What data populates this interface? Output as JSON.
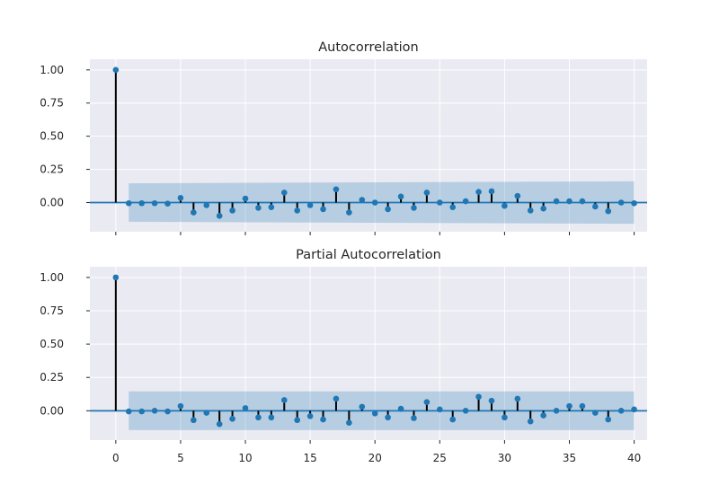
{
  "chart_data": [
    {
      "type": "stem",
      "title": "Autocorrelation",
      "xlim": [
        -2,
        41
      ],
      "ylim": [
        -0.22,
        1.08
      ],
      "yticks": [
        "1.00",
        "0.75",
        "0.50",
        "0.25",
        "0.00"
      ],
      "yticks_values": [
        1.0,
        0.75,
        0.5,
        0.25,
        0.0
      ],
      "xticks_values": [
        0,
        5,
        10,
        15,
        20,
        25,
        30,
        35,
        40
      ],
      "xticks_labels_shown": false,
      "confidence_band": {
        "x_start": 1,
        "x_end": 40,
        "lower_start": -0.145,
        "upper_start": 0.145,
        "lower_end": -0.16,
        "upper_end": 0.16
      },
      "lags": [
        0,
        1,
        2,
        3,
        4,
        5,
        6,
        7,
        8,
        9,
        10,
        11,
        12,
        13,
        14,
        15,
        16,
        17,
        18,
        19,
        20,
        21,
        22,
        23,
        24,
        25,
        26,
        27,
        28,
        29,
        30,
        31,
        32,
        33,
        34,
        35,
        36,
        37,
        38,
        39,
        40
      ],
      "values": [
        1.0,
        -0.005,
        -0.005,
        -0.005,
        -0.008,
        0.035,
        -0.075,
        -0.02,
        -0.1,
        -0.06,
        0.03,
        -0.04,
        -0.035,
        0.075,
        -0.06,
        -0.02,
        -0.05,
        0.1,
        -0.075,
        0.02,
        0.0,
        -0.05,
        0.045,
        -0.04,
        0.075,
        0.0,
        -0.035,
        0.01,
        0.08,
        0.085,
        -0.025,
        0.05,
        -0.06,
        -0.045,
        0.01,
        0.01,
        0.01,
        -0.03,
        -0.065,
        0.0,
        -0.005
      ],
      "grid": true
    },
    {
      "type": "stem",
      "title": "Partial Autocorrelation",
      "xlim": [
        -2,
        41
      ],
      "ylim": [
        -0.22,
        1.08
      ],
      "yticks": [
        "1.00",
        "0.75",
        "0.50",
        "0.25",
        "0.00"
      ],
      "yticks_values": [
        1.0,
        0.75,
        0.5,
        0.25,
        0.0
      ],
      "xticks": [
        "0",
        "5",
        "10",
        "15",
        "20",
        "25",
        "30",
        "35",
        "40"
      ],
      "xticks_values": [
        0,
        5,
        10,
        15,
        20,
        25,
        30,
        35,
        40
      ],
      "xticks_labels_shown": true,
      "confidence_band": {
        "x_start": 1,
        "x_end": 40,
        "lower_start": -0.145,
        "upper_start": 0.145,
        "lower_end": -0.145,
        "upper_end": 0.145
      },
      "lags": [
        0,
        1,
        2,
        3,
        4,
        5,
        6,
        7,
        8,
        9,
        10,
        11,
        12,
        13,
        14,
        15,
        16,
        17,
        18,
        19,
        20,
        21,
        22,
        23,
        24,
        25,
        26,
        27,
        28,
        29,
        30,
        31,
        32,
        33,
        34,
        35,
        36,
        37,
        38,
        39,
        40
      ],
      "values": [
        1.0,
        -0.005,
        -0.005,
        0.0,
        -0.005,
        0.035,
        -0.07,
        -0.015,
        -0.1,
        -0.06,
        0.02,
        -0.05,
        -0.05,
        0.08,
        -0.07,
        -0.04,
        -0.065,
        0.09,
        -0.09,
        0.03,
        -0.02,
        -0.05,
        0.015,
        -0.055,
        0.065,
        0.01,
        -0.065,
        0.0,
        0.105,
        0.075,
        -0.05,
        0.09,
        -0.08,
        -0.035,
        0.0,
        0.035,
        0.035,
        -0.015,
        -0.065,
        0.0,
        0.01
      ],
      "grid": true
    }
  ],
  "colors": {
    "background": "#ffffff",
    "axes_face": "#eaeaf2",
    "grid": "#ffffff",
    "marker": "#1f77b4",
    "stem": "#000000",
    "baseline": "#1f77b4",
    "band": "#1f77b4"
  }
}
